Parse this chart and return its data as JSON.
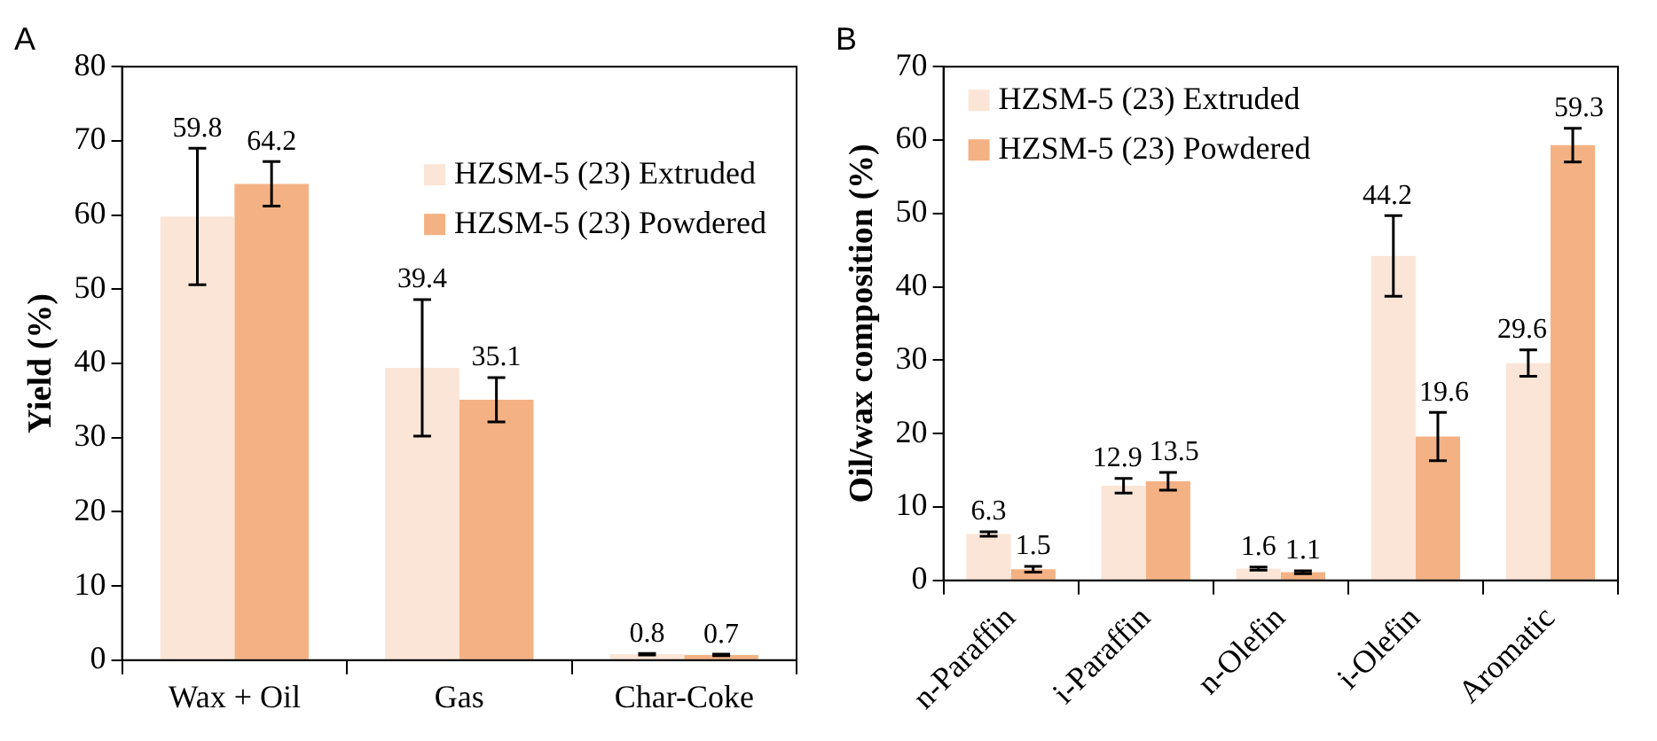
{
  "chart_data": [
    {
      "type": "bar",
      "title": "A",
      "ylabel": "Yield (%)",
      "categories": [
        "Wax + Oil",
        "Gas",
        "Char-Coke"
      ],
      "ylim": [
        0,
        80
      ],
      "yticks": [
        0,
        10,
        20,
        30,
        40,
        50,
        60,
        70,
        80
      ],
      "grid": false,
      "legend": "top right",
      "data_labels": true,
      "series": [
        {
          "name": "HZSM-5 (23) Extruded",
          "color": "#fbe5d6",
          "values": [
            59.8,
            39.4,
            0.8
          ],
          "errors": [
            9.2,
            9.2,
            0.1
          ]
        },
        {
          "name": "HZSM-5 (23) Powdered",
          "color": "#f4b183",
          "values": [
            64.2,
            35.1,
            0.7
          ],
          "errors": [
            3,
            3,
            0.1
          ]
        }
      ]
    },
    {
      "type": "bar",
      "title": "B",
      "ylabel": "Oil/wax composition (%)",
      "categories": [
        "n-Paraffin",
        "i-Paraffin",
        "n-Olefin",
        "i-Olefin",
        "Aromatic"
      ],
      "ylim": [
        0,
        70
      ],
      "yticks": [
        0,
        10,
        20,
        30,
        40,
        50,
        60,
        70
      ],
      "grid": false,
      "legend": "top left",
      "data_labels": true,
      "series": [
        {
          "name": "HZSM-5 (23) Extruded",
          "color": "#fbe5d6",
          "values": [
            6.3,
            12.9,
            1.6,
            44.2,
            29.6
          ],
          "errors": [
            0.3,
            1,
            0.2,
            5.5,
            1.8
          ]
        },
        {
          "name": "HZSM-5 (23) Powdered",
          "color": "#f4b183",
          "values": [
            1.5,
            13.5,
            1.1,
            19.6,
            59.3
          ],
          "errors": [
            0.4,
            1.2,
            0.2,
            3.3,
            2.3
          ]
        }
      ]
    }
  ]
}
